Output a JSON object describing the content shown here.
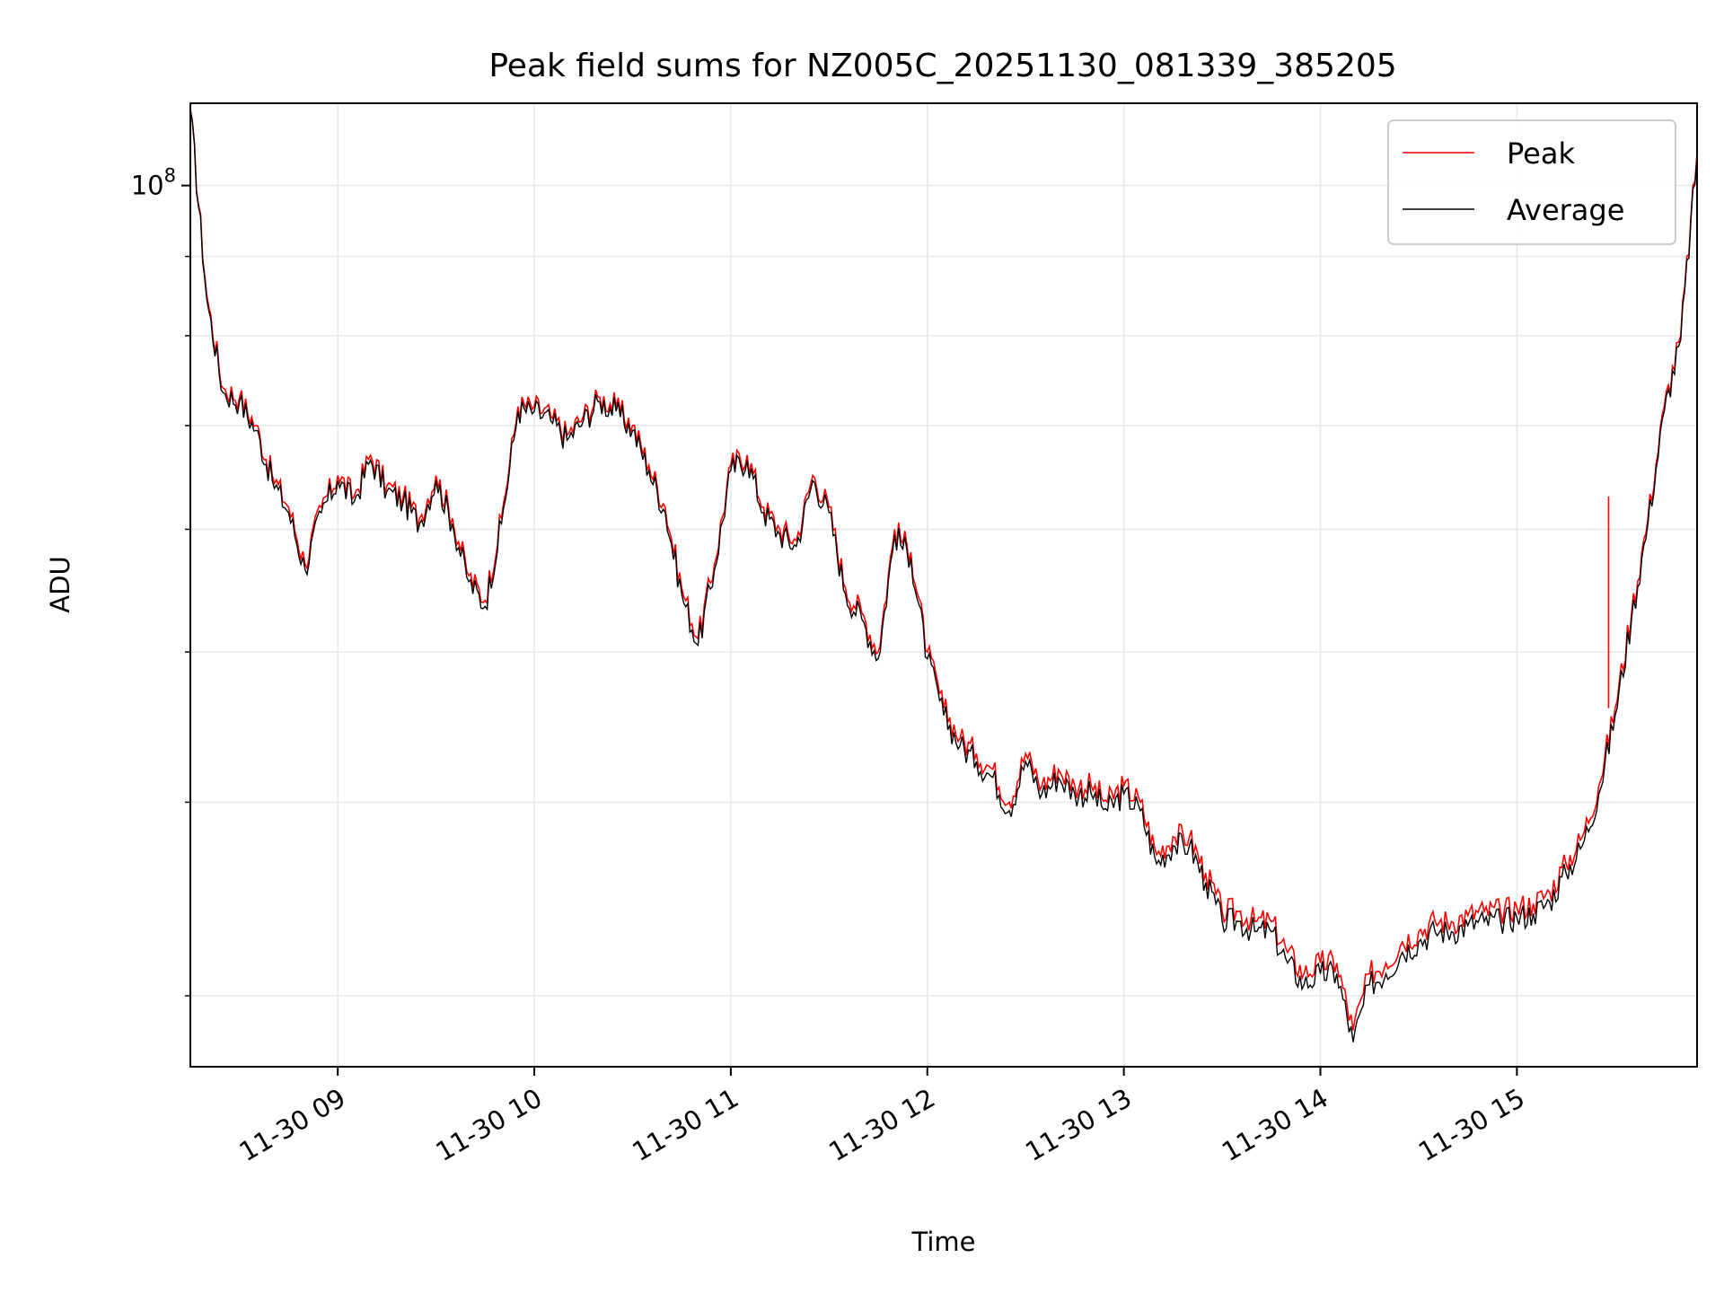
{
  "chart_data": {
    "type": "line",
    "title": "Peak field sums for NZ005C_20251130_081339_385205",
    "xlabel": "Time",
    "ylabel": "ADU",
    "y_scale": "log",
    "ylim": [
      27000000.0,
      113000000.0
    ],
    "xlim": [
      "2025-11-30 08:15",
      "2025-11-30 15:55"
    ],
    "x_tick_labels": [
      "11-30 09",
      "11-30 10",
      "11-30 11",
      "11-30 12",
      "11-30 13",
      "11-30 14",
      "11-30 15"
    ],
    "x_ticks": [
      "2025-11-30 09:00",
      "2025-11-30 10:00",
      "2025-11-30 11:00",
      "2025-11-30 12:00",
      "2025-11-30 13:00",
      "2025-11-30 14:00",
      "2025-11-30 15:00"
    ],
    "y_tick_label": "10^8",
    "y_tick_value": 100000000,
    "grid": true,
    "legend": "top-right",
    "x": [
      "2025-11-30 08:15",
      "2025-11-30 08:20",
      "2025-11-30 08:25",
      "2025-11-30 08:30",
      "2025-11-30 08:35",
      "2025-11-30 08:40",
      "2025-11-30 08:45",
      "2025-11-30 08:50",
      "2025-11-30 08:55",
      "2025-11-30 09:00",
      "2025-11-30 09:05",
      "2025-11-30 09:10",
      "2025-11-30 09:15",
      "2025-11-30 09:20",
      "2025-11-30 09:25",
      "2025-11-30 09:30",
      "2025-11-30 09:35",
      "2025-11-30 09:40",
      "2025-11-30 09:45",
      "2025-11-30 09:50",
      "2025-11-30 09:55",
      "2025-11-30 10:00",
      "2025-11-30 10:05",
      "2025-11-30 10:10",
      "2025-11-30 10:15",
      "2025-11-30 10:20",
      "2025-11-30 10:25",
      "2025-11-30 10:30",
      "2025-11-30 10:35",
      "2025-11-30 10:40",
      "2025-11-30 10:45",
      "2025-11-30 10:50",
      "2025-11-30 10:55",
      "2025-11-30 11:00",
      "2025-11-30 11:05",
      "2025-11-30 11:10",
      "2025-11-30 11:15",
      "2025-11-30 11:20",
      "2025-11-30 11:25",
      "2025-11-30 11:30",
      "2025-11-30 11:35",
      "2025-11-30 11:40",
      "2025-11-30 11:45",
      "2025-11-30 11:50",
      "2025-11-30 11:55",
      "2025-11-30 12:00",
      "2025-11-30 12:05",
      "2025-11-30 12:10",
      "2025-11-30 12:15",
      "2025-11-30 12:20",
      "2025-11-30 12:25",
      "2025-11-30 12:30",
      "2025-11-30 12:35",
      "2025-11-30 12:40",
      "2025-11-30 12:45",
      "2025-11-30 12:50",
      "2025-11-30 12:55",
      "2025-11-30 13:00",
      "2025-11-30 13:05",
      "2025-11-30 13:10",
      "2025-11-30 13:15",
      "2025-11-30 13:20",
      "2025-11-30 13:25",
      "2025-11-30 13:30",
      "2025-11-30 13:35",
      "2025-11-30 13:40",
      "2025-11-30 13:45",
      "2025-11-30 13:50",
      "2025-11-30 13:55",
      "2025-11-30 14:00",
      "2025-11-30 14:05",
      "2025-11-30 14:10",
      "2025-11-30 14:15",
      "2025-11-30 14:20",
      "2025-11-30 14:25",
      "2025-11-30 14:30",
      "2025-11-30 14:35",
      "2025-11-30 14:40",
      "2025-11-30 14:45",
      "2025-11-30 14:50",
      "2025-11-30 14:55",
      "2025-11-30 15:00",
      "2025-11-30 15:05",
      "2025-11-30 15:10",
      "2025-11-30 15:15",
      "2025-11-30 15:20",
      "2025-11-30 15:25",
      "2025-11-30 15:30",
      "2025-11-30 15:35",
      "2025-11-30 15:40",
      "2025-11-30 15:45",
      "2025-11-30 15:50",
      "2025-11-30 15:55"
    ],
    "series": [
      {
        "name": "Peak",
        "color": "#ff0000",
        "values": [
          112000000,
          85000000,
          74000000,
          73000000,
          70000000,
          65000000,
          62000000,
          57000000,
          62000000,
          65000000,
          63000000,
          67000000,
          64000000,
          63000000,
          61000000,
          65000000,
          61000000,
          56000000,
          54000000,
          61000000,
          72000000,
          72000000,
          71000000,
          69000000,
          71000000,
          73000000,
          72000000,
          70000000,
          66000000,
          62000000,
          55000000,
          51000000,
          57000000,
          66000000,
          67000000,
          62000000,
          60000000,
          59000000,
          65000000,
          62000000,
          55000000,
          53000000,
          50000000,
          60000000,
          58000000,
          50000000,
          46000000,
          44000000,
          43000000,
          42000000,
          40000000,
          43000000,
          41000000,
          42000000,
          41000000,
          41000000,
          40000000,
          41000000,
          40000000,
          37000000,
          38000000,
          38000000,
          36000000,
          34000000,
          34000000,
          33500000,
          33500000,
          32000000,
          31000000,
          31500000,
          31500000,
          28500000,
          31000000,
          31500000,
          32500000,
          33000000,
          33500000,
          33500000,
          33800000,
          34000000,
          34000000,
          34200000,
          34400000,
          35000000,
          36500000,
          38000000,
          41000000,
          46000000,
          53000000,
          61000000,
          72000000,
          80000000,
          105000000
        ],
        "spike": {
          "x": "2025-11-30 15:28",
          "value": 63000000
        }
      },
      {
        "name": "Average",
        "color": "#000000",
        "values": [
          112000000,
          84500000,
          73500000,
          72500000,
          69500000,
          64500000,
          61500000,
          56500000,
          61500000,
          64500000,
          62500000,
          66500000,
          63500000,
          62500000,
          60500000,
          64500000,
          60500000,
          55500000,
          53500000,
          60500000,
          71500000,
          71500000,
          70500000,
          68500000,
          70500000,
          72500000,
          71500000,
          69500000,
          65500000,
          61500000,
          54500000,
          50500000,
          56500000,
          65500000,
          66500000,
          61500000,
          59500000,
          58500000,
          64500000,
          61500000,
          54500000,
          52500000,
          49500000,
          59500000,
          57500000,
          49500000,
          45500000,
          43500000,
          42500000,
          41500000,
          39500000,
          42500000,
          40500000,
          41500000,
          40500000,
          40500000,
          39500000,
          40500000,
          39500000,
          36500000,
          37500000,
          37500000,
          35500000,
          33500000,
          33500000,
          33000000,
          33000000,
          31500000,
          30500000,
          31000000,
          31000000,
          28000000,
          30500000,
          31000000,
          32000000,
          32500000,
          33000000,
          33000000,
          33300000,
          33500000,
          33500000,
          33700000,
          33900000,
          34500000,
          36000000,
          37500000,
          40500000,
          45500000,
          52500000,
          60500000,
          71500000,
          79500000,
          104500000
        ]
      }
    ]
  }
}
